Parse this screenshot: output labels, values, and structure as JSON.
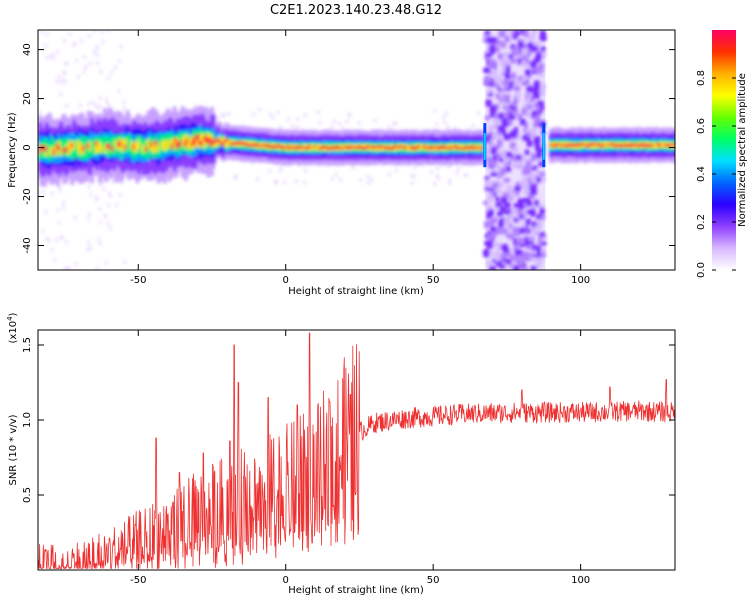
{
  "title": "C2E1.2023.140.23.48.G12",
  "chart_data": [
    {
      "type": "heatmap",
      "title": "C2E1.2023.140.23.48.G12",
      "xlabel": "Height of straight line (km)",
      "ylabel": "Frequency (Hz)",
      "xlim": [
        -84,
        132
      ],
      "ylim": [
        -50,
        48
      ],
      "x_ticks": [
        -50,
        0,
        50,
        100
      ],
      "x_tick_labels": [
        "-50",
        "0",
        "50",
        "100"
      ],
      "y_ticks": [
        -40,
        -20,
        0,
        20,
        40
      ],
      "y_tick_labels": [
        "-40",
        "-20",
        "0",
        "20",
        "40"
      ],
      "grid": false,
      "ridge": [
        {
          "x": -84,
          "y": -1
        },
        {
          "x": -70,
          "y": 0
        },
        {
          "x": -60,
          "y": 1
        },
        {
          "x": -50,
          "y": 0
        },
        {
          "x": -40,
          "y": 1
        },
        {
          "x": -30,
          "y": 3
        },
        {
          "x": -20,
          "y": 2
        },
        {
          "x": -10,
          "y": 1
        },
        {
          "x": 0,
          "y": 0
        },
        {
          "x": 20,
          "y": 0
        },
        {
          "x": 40,
          "y": 0
        },
        {
          "x": 60,
          "y": 0
        },
        {
          "x": 66,
          "y": 0
        },
        {
          "x": 88,
          "y": 1
        },
        {
          "x": 100,
          "y": 1
        },
        {
          "x": 132,
          "y": 1
        }
      ],
      "broadband_region": {
        "x_start": 67,
        "x_end": 88
      },
      "colorbar": {
        "label": "Normalized spectral amplitude",
        "range": [
          0,
          1
        ],
        "ticks": [
          0,
          0.2,
          0.4,
          0.6,
          0.8
        ],
        "tick_labels": [
          "0.0",
          "0.2",
          "0.4",
          "0.6",
          "0.8"
        ],
        "colors": [
          "#ffffff",
          "#d8b8ff",
          "#8f3fff",
          "#2b00ff",
          "#0066ff",
          "#00e0ff",
          "#00ff66",
          "#66ff00",
          "#ffff00",
          "#ffb000",
          "#ff3000",
          "#ff0066"
        ]
      }
    },
    {
      "type": "line",
      "xlabel": "Height of straight line (km)",
      "ylabel": "SNR (10 * v/v)",
      "y_multiplier": "(x10",
      "y_multiplier_exp": "4",
      "y_multiplier_close": ")",
      "xlim": [
        -84,
        132
      ],
      "ylim": [
        0,
        1.6
      ],
      "x_ticks": [
        -50,
        0,
        50,
        100
      ],
      "x_tick_labels": [
        "-50",
        "0",
        "50",
        "100"
      ],
      "y_ticks": [
        0.5,
        1.0,
        1.5
      ],
      "y_tick_labels": [
        "0.5",
        "1.0",
        "1.5"
      ],
      "grid": false,
      "line_color": "#ee3030",
      "trend": [
        {
          "x": -84,
          "y": 0.03
        },
        {
          "x": -70,
          "y": 0.05
        },
        {
          "x": -60,
          "y": 0.1
        },
        {
          "x": -50,
          "y": 0.17
        },
        {
          "x": -40,
          "y": 0.25
        },
        {
          "x": -30,
          "y": 0.33
        },
        {
          "x": -20,
          "y": 0.4
        },
        {
          "x": -10,
          "y": 0.46
        },
        {
          "x": 0,
          "y": 0.52
        },
        {
          "x": 10,
          "y": 0.6
        },
        {
          "x": 20,
          "y": 0.8
        },
        {
          "x": 25,
          "y": 0.92
        },
        {
          "x": 30,
          "y": 0.98
        },
        {
          "x": 40,
          "y": 1.01
        },
        {
          "x": 60,
          "y": 1.04
        },
        {
          "x": 80,
          "y": 1.05
        },
        {
          "x": 100,
          "y": 1.05
        },
        {
          "x": 120,
          "y": 1.06
        },
        {
          "x": 132,
          "y": 1.05
        }
      ],
      "spikes": [
        {
          "x": -44,
          "y": 0.88
        },
        {
          "x": -36,
          "y": 0.65
        },
        {
          "x": -28,
          "y": 0.78
        },
        {
          "x": -19,
          "y": 0.86
        },
        {
          "x": -17.5,
          "y": 1.5
        },
        {
          "x": -16,
          "y": 1.25
        },
        {
          "x": -6,
          "y": 1.15
        },
        {
          "x": 4,
          "y": 1.1
        },
        {
          "x": 8,
          "y": 1.58
        },
        {
          "x": 9,
          "y": 0.18
        },
        {
          "x": 15,
          "y": 1.12
        },
        {
          "x": 22,
          "y": 1.17
        },
        {
          "x": 80,
          "y": 1.2
        },
        {
          "x": 110,
          "y": 1.22
        },
        {
          "x": 129,
          "y": 1.27
        }
      ]
    }
  ]
}
